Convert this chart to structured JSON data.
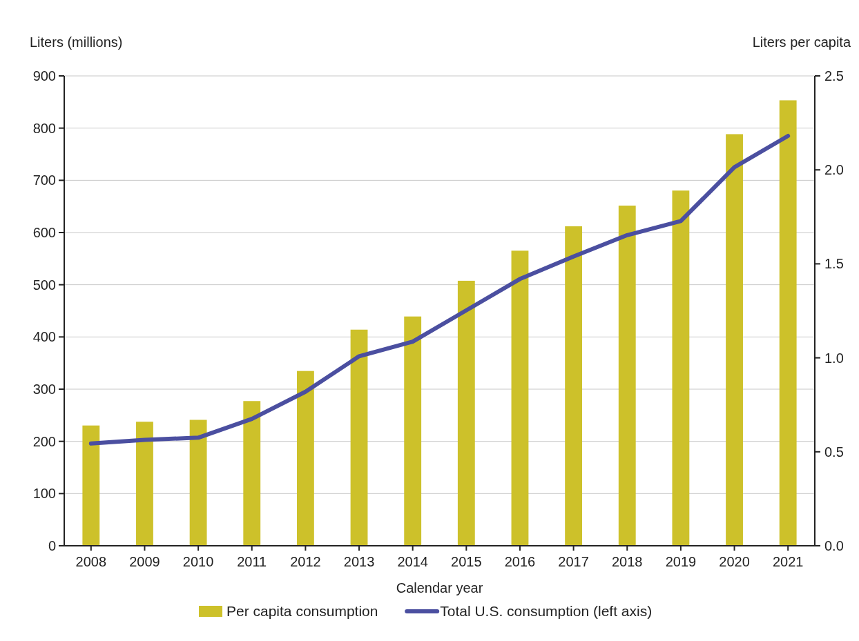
{
  "chart_data": {
    "type": "bar",
    "xlabel": "Calendar year",
    "ylabel": "Liters (millions)",
    "y2label": "Liters per capita",
    "categories": [
      "2008",
      "2009",
      "2010",
      "2011",
      "2012",
      "2013",
      "2014",
      "2015",
      "2016",
      "2017",
      "2018",
      "2019",
      "2020",
      "2021"
    ],
    "series": [
      {
        "name": "Per capita consumption",
        "axis": "y2",
        "color": "#cdc12a",
        "values": [
          0.64,
          0.66,
          0.67,
          0.77,
          0.93,
          1.15,
          1.22,
          1.41,
          1.57,
          1.7,
          1.81,
          1.89,
          2.19,
          2.37
        ]
      },
      {
        "name": "Total U.S. consumption (left axis)",
        "type": "line",
        "color": "#4b4fa0",
        "values": [
          196,
          203,
          207,
          243,
          295,
          363,
          391,
          451,
          511,
          554,
          595,
          622,
          725,
          785
        ]
      }
    ],
    "ylim": [
      0,
      900
    ],
    "yticks": [
      0,
      100,
      200,
      300,
      400,
      500,
      600,
      700,
      800,
      900
    ],
    "y2lim": [
      0,
      2.5
    ],
    "y2ticks": [
      {
        "value": 0,
        "label": "0.0"
      },
      0.5,
      {
        "value": 1,
        "label": "1.0"
      },
      1.5,
      {
        "value": 2,
        "label": "2.0"
      },
      2.5
    ],
    "grid": "y",
    "legend": "bottom",
    "marker": "none",
    "line_style": "solid"
  }
}
